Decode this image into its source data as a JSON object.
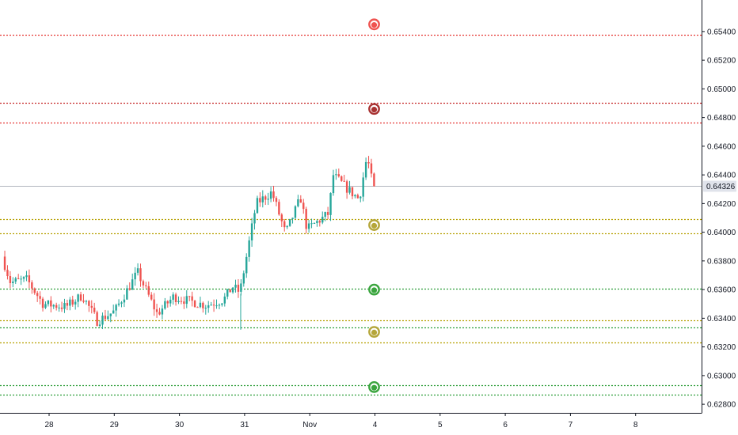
{
  "chart_data": {
    "type": "candlestick",
    "title": "",
    "xlabel": "",
    "ylabel": "",
    "ylim": [
      0.6274,
      0.6562
    ],
    "grid": false,
    "colors": {
      "up": "#26a69a",
      "down": "#ef5350",
      "last_line": "#b2b5be"
    },
    "last_price": {
      "value": 0.64326,
      "label": "0.64326"
    },
    "y_ticks": [
      {
        "value": 0.628,
        "label": "0.62800"
      },
      {
        "value": 0.63,
        "label": "0.63000"
      },
      {
        "value": 0.632,
        "label": "0.63200"
      },
      {
        "value": 0.634,
        "label": "0.63400"
      },
      {
        "value": 0.636,
        "label": "0.63600"
      },
      {
        "value": 0.638,
        "label": "0.63800"
      },
      {
        "value": 0.64,
        "label": "0.64000"
      },
      {
        "value": 0.642,
        "label": "0.64200"
      },
      {
        "value": 0.644,
        "label": "0.64400"
      },
      {
        "value": 0.646,
        "label": "0.64600"
      },
      {
        "value": 0.648,
        "label": "0.64800"
      },
      {
        "value": 0.65,
        "label": "0.65000"
      },
      {
        "value": 0.652,
        "label": "0.65200"
      },
      {
        "value": 0.654,
        "label": "0.65400"
      }
    ],
    "x_ticks": [
      {
        "t": 0,
        "label": "28"
      },
      {
        "t": 1,
        "label": "29"
      },
      {
        "t": 2,
        "label": "30"
      },
      {
        "t": 3,
        "label": "31"
      },
      {
        "t": 4,
        "label": "Nov"
      },
      {
        "t": 5,
        "label": "4"
      },
      {
        "t": 6,
        "label": "5"
      },
      {
        "t": 7,
        "label": "6"
      },
      {
        "t": 8,
        "label": "7"
      },
      {
        "t": 9,
        "label": "8"
      }
    ],
    "levels": [
      {
        "value": 0.65375,
        "color": "#e53935"
      },
      {
        "value": 0.64903,
        "color": "#c62828"
      },
      {
        "value": 0.64765,
        "color": "#e53935"
      },
      {
        "value": 0.64092,
        "color": "#b5a000"
      },
      {
        "value": 0.63995,
        "color": "#b5a000"
      },
      {
        "value": 0.63605,
        "color": "#2e9e3a"
      },
      {
        "value": 0.63385,
        "color": "#b5a000"
      },
      {
        "value": 0.63335,
        "color": "#2e9e3a"
      },
      {
        "value": 0.63232,
        "color": "#b5a000"
      },
      {
        "value": 0.62935,
        "color": "#2e9e3a"
      },
      {
        "value": 0.62865,
        "color": "#2e9e3a"
      }
    ],
    "markers": [
      {
        "t": 5,
        "value": 0.6545,
        "color": "#ef5350"
      },
      {
        "t": 5,
        "value": 0.6486,
        "color": "#a83232"
      },
      {
        "t": 5,
        "value": 0.6405,
        "color": "#b5a63a"
      },
      {
        "t": 5,
        "value": 0.636,
        "color": "#3aa53e"
      },
      {
        "t": 5,
        "value": 0.63305,
        "color": "#b5a63a"
      },
      {
        "t": 5,
        "value": 0.6292,
        "color": "#3aa53e"
      }
    ],
    "candle_waypoints": [
      {
        "t": -0.68,
        "v": 0.6383
      },
      {
        "t": -0.55,
        "v": 0.6365
      },
      {
        "t": -0.3,
        "v": 0.6367
      },
      {
        "t": -0.05,
        "v": 0.635
      },
      {
        "t": 0.3,
        "v": 0.6348
      },
      {
        "t": 0.55,
        "v": 0.6356
      },
      {
        "t": 0.78,
        "v": 0.6338
      },
      {
        "t": 1.05,
        "v": 0.6345
      },
      {
        "t": 1.4,
        "v": 0.6372
      },
      {
        "t": 1.7,
        "v": 0.6343
      },
      {
        "t": 1.95,
        "v": 0.6355
      },
      {
        "t": 2.2,
        "v": 0.6352
      },
      {
        "t": 2.45,
        "v": 0.6349
      },
      {
        "t": 2.72,
        "v": 0.6353
      },
      {
        "t": 2.86,
        "v": 0.6362
      },
      {
        "t": 2.97,
        "v": 0.6358
      },
      {
        "t": 3.22,
        "v": 0.642
      },
      {
        "t": 3.46,
        "v": 0.6428
      },
      {
        "t": 3.67,
        "v": 0.6399
      },
      {
        "t": 3.9,
        "v": 0.6424
      },
      {
        "t": 4.0,
        "v": 0.6402
      },
      {
        "t": 4.33,
        "v": 0.6413
      },
      {
        "t": 4.4,
        "v": 0.644
      },
      {
        "t": 4.6,
        "v": 0.6431
      },
      {
        "t": 4.8,
        "v": 0.6423
      },
      {
        "t": 4.92,
        "v": 0.6453
      },
      {
        "t": 5.02,
        "v": 0.643
      }
    ]
  }
}
